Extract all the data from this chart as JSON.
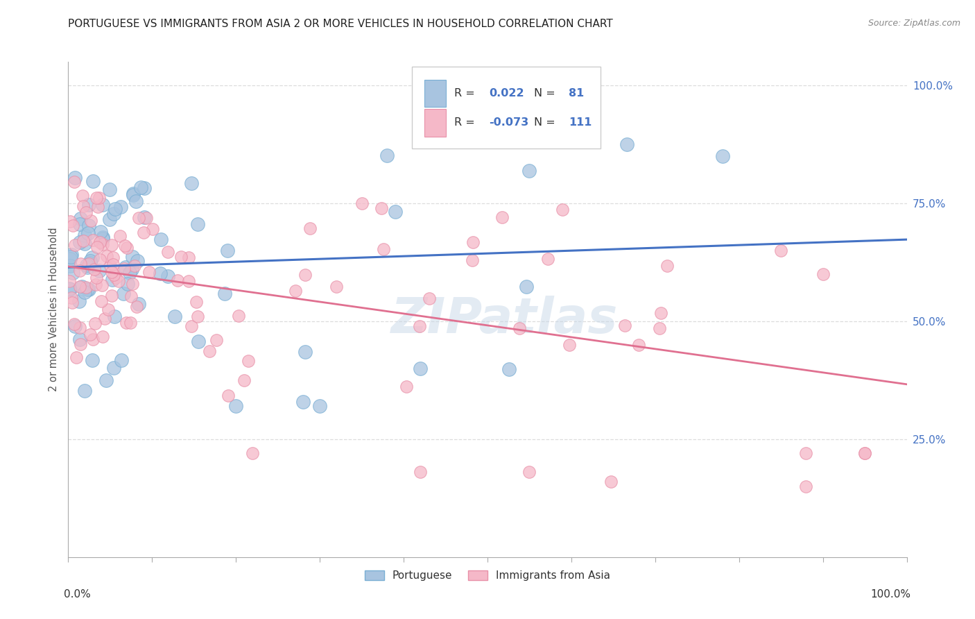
{
  "title": "PORTUGUESE VS IMMIGRANTS FROM ASIA 2 OR MORE VEHICLES IN HOUSEHOLD CORRELATION CHART",
  "source": "Source: ZipAtlas.com",
  "ylabel": "2 or more Vehicles in Household",
  "blue_R": "0.022",
  "blue_N": "81",
  "pink_R": "-0.073",
  "pink_N": "111",
  "blue_scatter_color": "#a8c4e0",
  "blue_edge_color": "#7aafd4",
  "pink_scatter_color": "#f5b8c8",
  "pink_edge_color": "#e890a8",
  "blue_line_color": "#4472c4",
  "pink_line_color": "#e07090",
  "title_fontsize": 11,
  "source_fontsize": 9,
  "label_color": "#4472c4",
  "ylabel_color": "#555555",
  "background_color": "#ffffff",
  "watermark": "ZIPatlas",
  "watermark_color": "#c8d8e8",
  "grid_color": "#dddddd",
  "spine_color": "#aaaaaa"
}
